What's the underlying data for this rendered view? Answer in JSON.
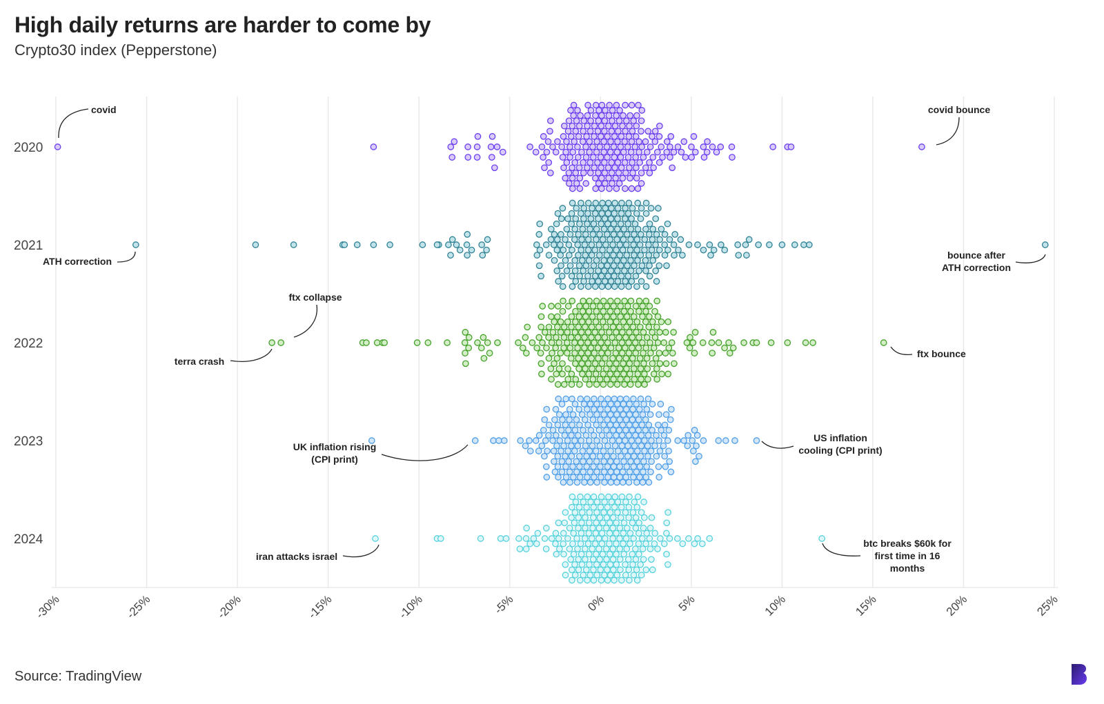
{
  "title": "High daily returns are harder to come by",
  "subtitle": "Crypto30 index (Pepperstone)",
  "source": "Source: TradingView",
  "logo_icon": "b-logo-icon",
  "chart_data": {
    "type": "scatter",
    "subtype": "beeswarm",
    "title": "High daily returns are harder to come by",
    "subtitle": "Crypto30 index (Pepperstone)",
    "xlabel": "",
    "ylabel": "",
    "xlim": [
      -30,
      25
    ],
    "x_ticks": [
      -30,
      -25,
      -20,
      -15,
      -10,
      -5,
      0,
      5,
      10,
      15,
      20,
      25
    ],
    "x_tick_labels": [
      "-30%",
      "-25%",
      "-20%",
      "-15%",
      "-10%",
      "-5%",
      "0%",
      "5%",
      "10%",
      "15%",
      "20%",
      "25%"
    ],
    "categories": [
      "2020",
      "2021",
      "2022",
      "2023",
      "2024"
    ],
    "grid": "vertical",
    "legend": "none",
    "series": [
      {
        "category": "2020",
        "color": "#6a3df0",
        "fill": "#d9ccfb",
        "outliers": [
          -29.9,
          -12.5,
          9.5,
          10.3,
          10.5,
          17.7
        ],
        "core": {
          "min": -8.3,
          "max": 7.3,
          "spread": 2.6,
          "count": 310
        }
      },
      {
        "category": "2021",
        "color": "#2f8294",
        "fill": "#c3e3ea",
        "outliers": [
          -25.6,
          -19.0,
          -16.9,
          -14.2,
          -14.1,
          -13.4,
          -12.5,
          -11.6,
          -9.8,
          -9.0,
          8.7,
          9.3,
          10.0,
          10.7,
          11.2,
          11.5,
          24.5
        ],
        "core": {
          "min": -9.0,
          "max": 8.3,
          "spread": 2.5,
          "count": 420
        }
      },
      {
        "category": "2022",
        "color": "#43a128",
        "fill": "#d4efc8",
        "outliers": [
          -18.1,
          -17.6,
          -13.1,
          -12.9,
          -12.3,
          -12.0,
          -11.9,
          -10.1,
          -9.5,
          7.9,
          8.4,
          8.6,
          9.4,
          10.3,
          11.3,
          11.7,
          15.6
        ],
        "core": {
          "min": -8.5,
          "max": 7.5,
          "spread": 2.7,
          "count": 480
        }
      },
      {
        "category": "2023",
        "color": "#4e9ee8",
        "fill": "#d2e6fa",
        "outliers": [
          -12.6,
          -6.9,
          -5.9,
          -5.6,
          -5.3,
          6.5,
          6.9,
          7.4,
          8.6
        ],
        "core": {
          "min": -4.5,
          "max": 6.0,
          "spread": 2.6,
          "count": 520
        }
      },
      {
        "category": "2024",
        "color": "#55d2dc",
        "fill": "#dff7f9",
        "outliers": [
          -12.4,
          -9.0,
          -8.8,
          -6.6,
          -5.5,
          -5.2,
          12.2
        ],
        "core": {
          "min": -4.5,
          "max": 6.5,
          "spread": 2.0,
          "count": 300
        }
      }
    ],
    "annotations": [
      {
        "text": [
          "covid"
        ],
        "category": "2020",
        "x": -29.9
      },
      {
        "text": [
          "covid bounce"
        ],
        "category": "2020",
        "x": 17.7
      },
      {
        "text": [
          "ATH correction"
        ],
        "category": "2021",
        "x": -25.6
      },
      {
        "text": [
          "bounce after",
          "ATH correction"
        ],
        "category": "2021",
        "x": 24.5
      },
      {
        "text": [
          "ftx collapse"
        ],
        "category": "2022",
        "x": -17.6
      },
      {
        "text": [
          "terra crash"
        ],
        "category": "2022",
        "x": -18.1
      },
      {
        "text": [
          "ftx bounce"
        ],
        "category": "2022",
        "x": 15.6
      },
      {
        "text": [
          "UK inflation rising",
          "(CPI print)"
        ],
        "category": "2023",
        "x": -6.9
      },
      {
        "text": [
          "US inflation",
          "cooling (CPI print)"
        ],
        "category": "2023",
        "x": 8.6
      },
      {
        "text": [
          "iran attacks israel"
        ],
        "category": "2024",
        "x": -12.4
      },
      {
        "text": [
          "btc breaks $60k for",
          "first time in 16",
          "months"
        ],
        "category": "2024",
        "x": 12.2
      }
    ]
  }
}
